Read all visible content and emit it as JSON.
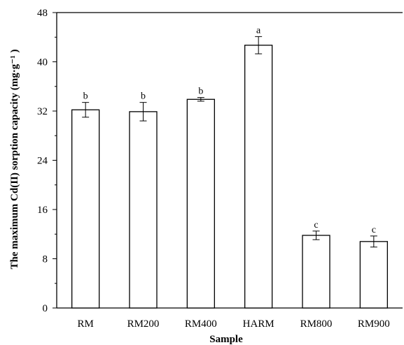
{
  "chart_data": {
    "type": "bar",
    "categories": [
      "RM",
      "RM200",
      "RM400",
      "HARM",
      "RM800",
      "RM900"
    ],
    "values": [
      32.2,
      31.9,
      33.9,
      42.7,
      11.8,
      10.8
    ],
    "errors": [
      1.2,
      1.5,
      0.3,
      1.4,
      0.7,
      0.9
    ],
    "significance_letters": [
      "b",
      "b",
      "b",
      "a",
      "c",
      "c"
    ],
    "xlabel": "Sample",
    "ylabel": "The maximum Cd(II) sorption capacity (mg·g⁻¹ )",
    "ylim": [
      0,
      48
    ],
    "yticks": [
      "0",
      "8",
      "16",
      "24",
      "32",
      "40",
      "48"
    ],
    "grid": false,
    "bar_fill": "#ffffff",
    "bar_stroke": "#000000"
  }
}
